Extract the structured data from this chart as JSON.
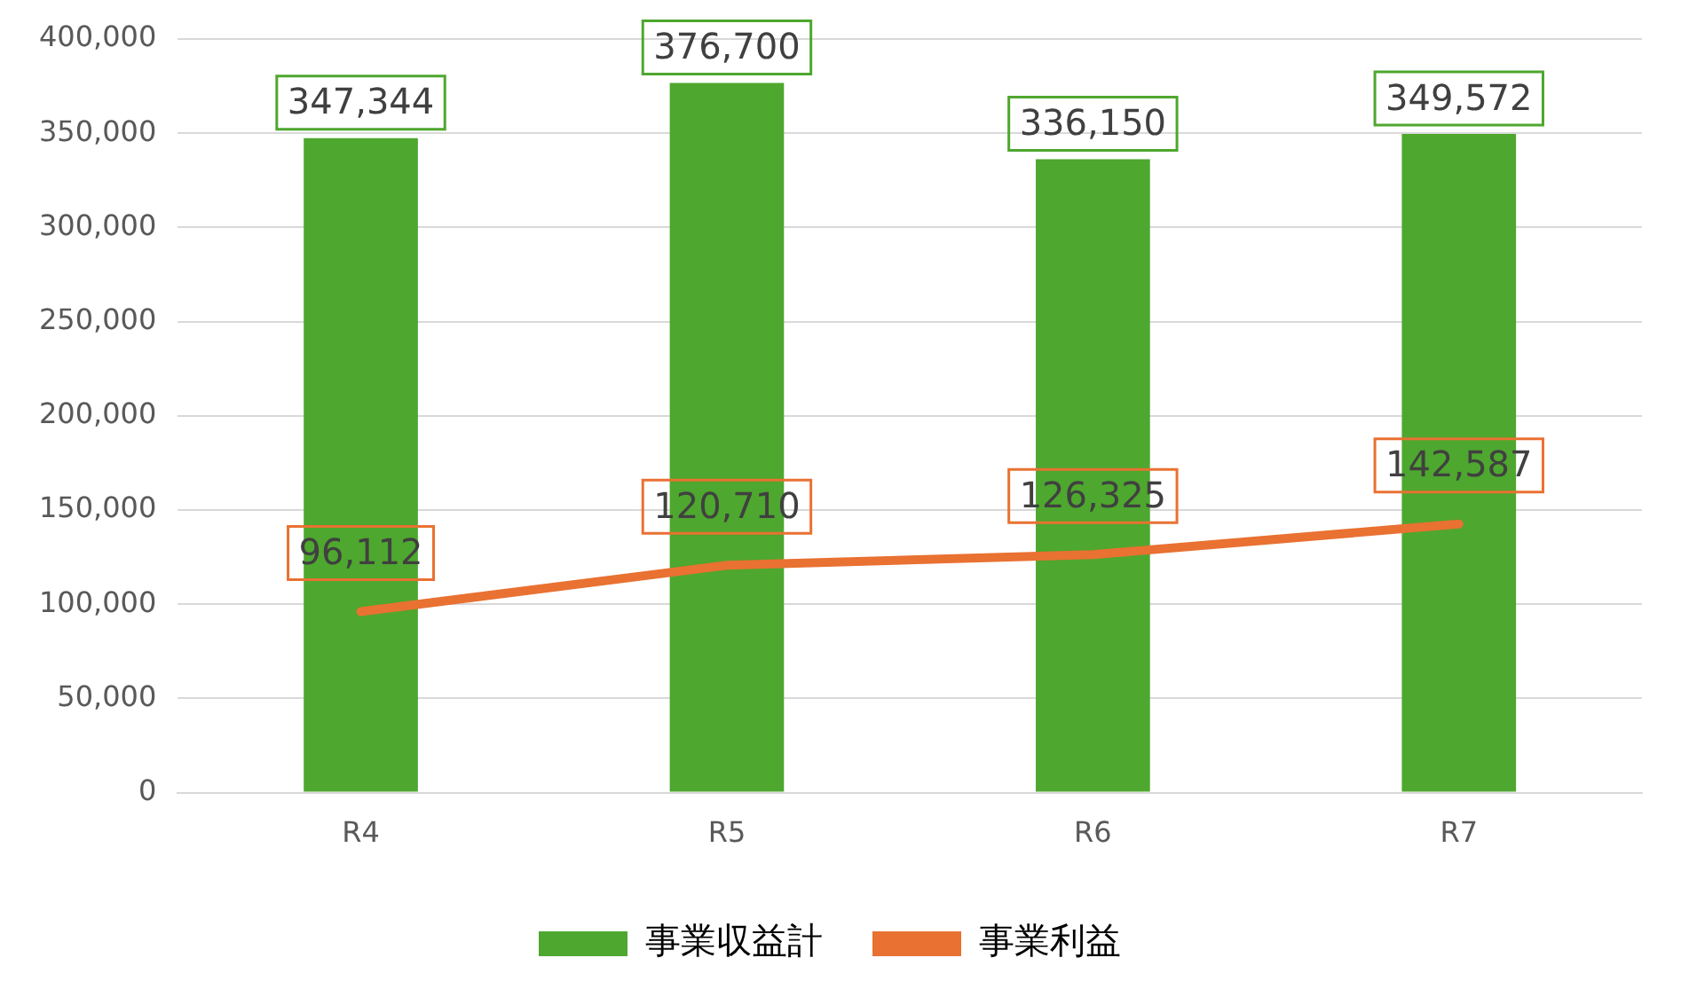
{
  "chart_data": {
    "type": "bar",
    "categories": [
      "R4",
      "R5",
      "R6",
      "R7"
    ],
    "series": [
      {
        "name": "事業収益計",
        "color": "#4ea72e",
        "values": [
          347344,
          376700,
          336150,
          349572
        ],
        "value_labels": [
          "347,344",
          "376,700",
          "336,150",
          "349,572"
        ]
      },
      {
        "name": "事業利益",
        "type": "line",
        "color": "#e97132",
        "values": [
          96112,
          120710,
          126325,
          142587
        ],
        "value_labels": [
          "96,112",
          "120,710",
          "126,325",
          "142,587"
        ]
      }
    ],
    "ylim": [
      0,
      400000
    ],
    "yticks": [
      {
        "value": 0,
        "label": "0"
      },
      {
        "value": 50000,
        "label": "50,000"
      },
      {
        "value": 100000,
        "label": "100,000"
      },
      {
        "value": 150000,
        "label": "150,000"
      },
      {
        "value": 200000,
        "label": "200,000"
      },
      {
        "value": 250000,
        "label": "250,000"
      },
      {
        "value": 300000,
        "label": "300,000"
      },
      {
        "value": 350000,
        "label": "350,000"
      },
      {
        "value": 400000,
        "label": "400,000"
      }
    ],
    "grid": "y",
    "legend": "bottom",
    "marker": "none"
  }
}
